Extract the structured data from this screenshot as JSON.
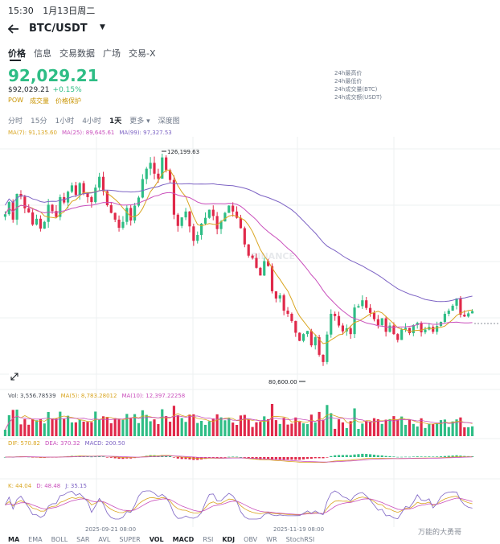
{
  "status_bar": {
    "time": "15:30",
    "date": "1月13日周二"
  },
  "header": {
    "pair": "BTC/USDT"
  },
  "tabs": [
    "价格",
    "信息",
    "交易数据",
    "广场",
    "交易-X"
  ],
  "price": {
    "last": "92,029.21",
    "last_usd": "$92,029.21",
    "change": "+0.15%",
    "tags": [
      "POW",
      "成交量",
      "价格保护"
    ]
  },
  "stats_labels": [
    "24h最高价",
    "24h最低价",
    "24h成交量(BTC)",
    "24h成交额(USDT)"
  ],
  "intervals": [
    "分时",
    "15分",
    "1小时",
    "4小时",
    "1天",
    "更多 ▾",
    "深度图"
  ],
  "ma_legend": {
    "ma7": "MA(7): 91,135.60",
    "ma25": "MA(25): 89,645.61",
    "ma99": "MA(99): 97,327.53"
  },
  "chart_annotations": {
    "high": "126,199.63",
    "low": "80,600.00"
  },
  "vol_legend": {
    "vol": "Vol: 3,556.78539",
    "ma5": "MA(5): 8,783.28012",
    "ma10": "MA(10): 12,397.22258"
  },
  "macd_legend": {
    "dif": "DIF: 570.82",
    "dea": "DEA: 370.32",
    "macd": "MACD: 200.50"
  },
  "kdj_legend": {
    "k": "K: 44.04",
    "d": "D: 48.48",
    "j": "J: 35.15"
  },
  "x_dates": [
    "2025-09-21 08:00",
    "2025-11-19 08:00"
  ],
  "indicator_tabs": [
    "MA",
    "EMA",
    "BOLL",
    "SAR",
    "AVL",
    "SUPER",
    "VOL",
    "MACD",
    "RSI",
    "KDJ",
    "OBV",
    "WR",
    "StochRSI"
  ],
  "watermark": "BINANCE",
  "footer_watermark": "万能的大勇哥",
  "colors": {
    "up": "#2ebd85",
    "down": "#e0294a",
    "ma7": "#d9a520",
    "ma25": "#c94fbc",
    "ma99": "#7d63c4"
  },
  "chart_data": {
    "type": "candlestick",
    "title": "BTC/USDT 1D",
    "series_closes": [
      113500,
      116200,
      112300,
      118000,
      117400,
      114800,
      113900,
      111200,
      112500,
      110300,
      111800,
      115600,
      114200,
      112900,
      117300,
      116100,
      118500,
      119900,
      117800,
      120400,
      118200,
      117300,
      116200,
      119400,
      121800,
      118600,
      115500,
      113800,
      112300,
      110500,
      111800,
      114900,
      112100,
      115400,
      117200,
      121300,
      123600,
      124900,
      122500,
      121400,
      126100,
      123300,
      121100,
      113400,
      110900,
      112800,
      114100,
      110800,
      107600,
      108900,
      111400,
      112700,
      114500,
      113100,
      110200,
      111900,
      113800,
      115400,
      114100,
      112700,
      110400,
      106800,
      104300,
      103800,
      101600,
      99900,
      103100,
      102000,
      96400,
      94800,
      95500,
      92100,
      91400,
      89800,
      87200,
      85400,
      86900,
      87600,
      84400,
      86200,
      82300,
      80700,
      86800,
      91400,
      90900,
      88800,
      87500,
      88200,
      86900,
      92800,
      93100,
      94400,
      92700,
      91600,
      90200,
      88900,
      90400,
      87400,
      88800,
      86900,
      85600,
      87900,
      88300,
      87100,
      88900,
      89400,
      87300,
      87900,
      88500,
      87400,
      88700,
      89600,
      91400,
      92100,
      93200,
      94800,
      91200,
      90800,
      91500,
      92000
    ],
    "high_label": 126199.63,
    "low_label": 80600.0,
    "ma7": 91135.6,
    "ma25": 89645.61,
    "ma99": 97327.53,
    "volume": 3556.78539,
    "vol_ma5": 8783.28012,
    "vol_ma10": 12397.22258,
    "macd": {
      "dif": 570.82,
      "dea": 370.32,
      "hist": 200.5
    },
    "kdj": {
      "k": 44.04,
      "d": 48.48,
      "j": 35.15
    },
    "x_ticks": [
      "2025-09-21 08:00",
      "2025-11-19 08:00"
    ]
  }
}
